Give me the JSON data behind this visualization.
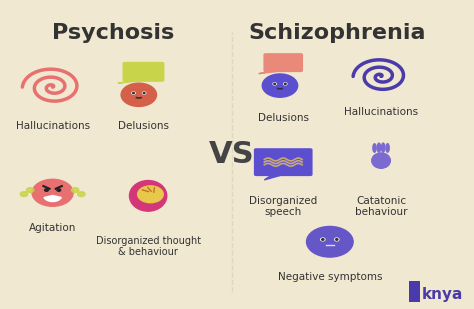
{
  "background_color": "#f0e8d0",
  "title_left": "Psychosis",
  "title_right": "Schizophrenia",
  "vs_text": "VS",
  "title_fontsize": 16,
  "vs_fontsize": 22,
  "label_fontsize": 9,
  "brand": "knya",
  "brand_fontsize": 11,
  "spiral_color_left": "#e87070",
  "chat_color_left": "#c8d44a",
  "angry_color": "#e87070",
  "brain_head_color": "#d4367a",
  "brain_color": "#e8c84a",
  "spiral_color_right": "#4a3aaa",
  "face2_color": "#5b4fcf",
  "chat2_color": "#e8897a",
  "tangle_color": "#7b5e3a",
  "hand_color": "#7b6ad0",
  "calm_face_color": "#6657c8"
}
